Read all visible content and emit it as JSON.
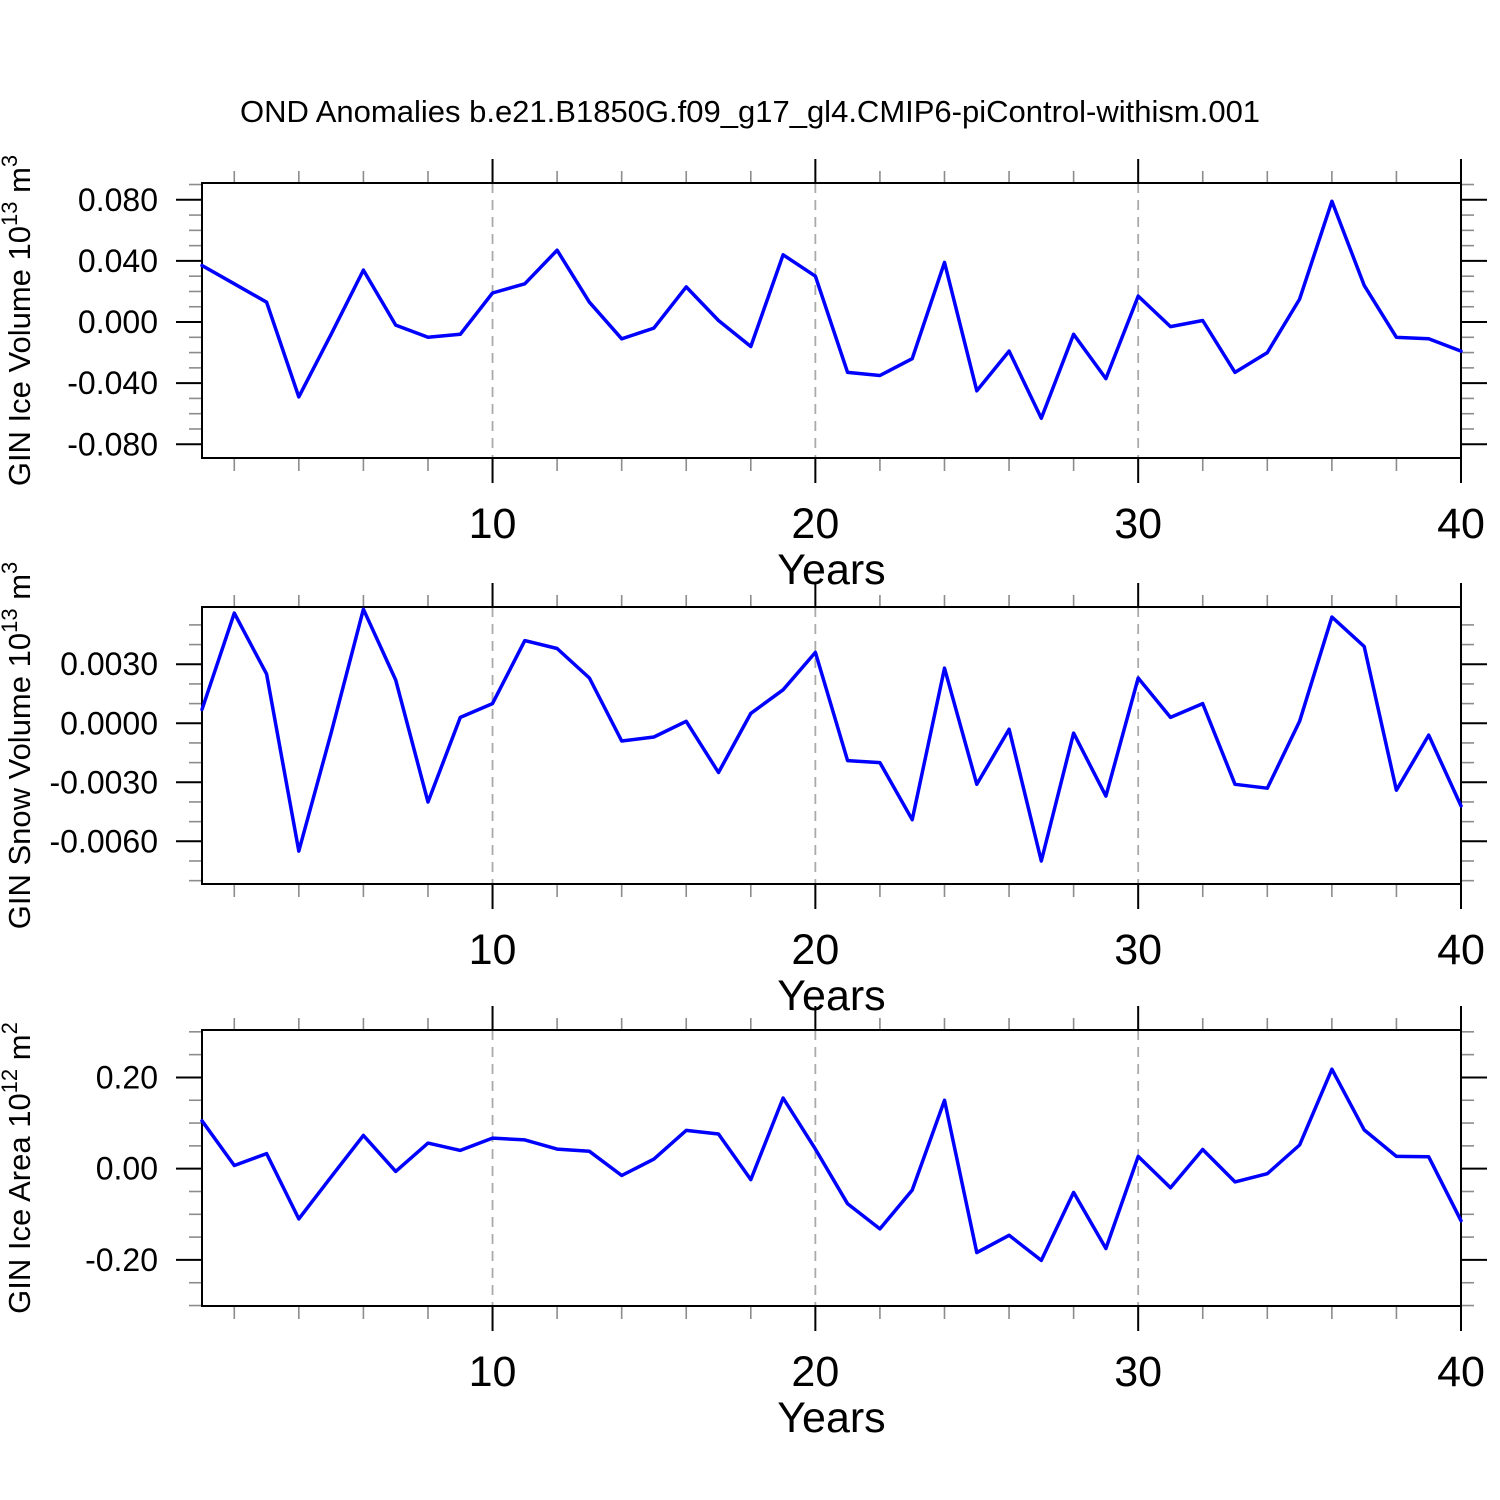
{
  "title": "OND Anomalies b.e21.B1850G.f09_g17_gl4.CMIP6-piControl-withism.001",
  "style": {
    "line_color": "#0000ff",
    "axis_color": "#000000",
    "minor_tick_color": "#8c8c8c",
    "grid_color": "#aaaaaa",
    "background": "#ffffff"
  },
  "chart_data": [
    {
      "type": "line",
      "name": "gin-ice-volume",
      "ylabel": "GIN Ice Volume 10^13 m^3",
      "ylabel_parts": [
        {
          "t": "GIN Ice Volume 10"
        },
        {
          "sup": "13"
        },
        {
          "t": " m"
        },
        {
          "sup": "3"
        }
      ],
      "xlabel": "Years",
      "x_start": 1,
      "xlim": [
        1,
        40
      ],
      "ylim": [
        -0.089,
        0.091
      ],
      "yticks": [
        -0.08,
        -0.04,
        0.0,
        0.04,
        0.08
      ],
      "ytick_labels": [
        "-0.080",
        "-0.040",
        "0.000",
        "0.040",
        "0.080"
      ],
      "yminor_step": 0.01,
      "xticks": [
        10,
        20,
        30,
        40
      ],
      "xtick_labels": [
        "10",
        "20",
        "30",
        "40"
      ],
      "xminor_step": 2,
      "grid_x": [
        10,
        20,
        30
      ],
      "values": [
        0.037,
        0.025,
        0.013,
        -0.049,
        -0.008,
        0.034,
        -0.002,
        -0.01,
        -0.008,
        0.019,
        0.025,
        0.047,
        0.013,
        -0.011,
        -0.004,
        0.023,
        0.001,
        -0.016,
        0.044,
        0.03,
        -0.033,
        -0.035,
        -0.024,
        0.039,
        -0.045,
        -0.019,
        -0.063,
        -0.008,
        -0.037,
        0.017,
        -0.003,
        0.001,
        -0.033,
        -0.02,
        0.015,
        0.079,
        0.024,
        -0.01,
        -0.011,
        -0.019
      ]
    },
    {
      "type": "line",
      "name": "gin-snow-volume",
      "ylabel": "GIN Snow Volume 10^13 m^3",
      "ylabel_parts": [
        {
          "t": "GIN Snow Volume 10"
        },
        {
          "sup": "13"
        },
        {
          "t": " m"
        },
        {
          "sup": "3"
        }
      ],
      "xlabel": "Years",
      "x_start": 1,
      "xlim": [
        1,
        40
      ],
      "ylim": [
        -0.00817,
        0.00591
      ],
      "yticks": [
        -0.006,
        -0.003,
        0.0,
        0.003
      ],
      "ytick_labels": [
        "-0.0060",
        "-0.0030",
        "0.0000",
        "0.0030"
      ],
      "yminor_step": 0.001,
      "xticks": [
        10,
        20,
        30,
        40
      ],
      "xtick_labels": [
        "10",
        "20",
        "30",
        "40"
      ],
      "xminor_step": 2,
      "grid_x": [
        10,
        20,
        30
      ],
      "values": [
        0.0007,
        0.0056,
        0.0025,
        -0.0065,
        -0.0005,
        0.0058,
        0.0022,
        -0.004,
        0.0003,
        0.001,
        0.0042,
        0.0038,
        0.0023,
        -0.0009,
        -0.0007,
        0.0001,
        -0.0025,
        0.0005,
        0.0017,
        0.0036,
        -0.0019,
        -0.002,
        -0.0049,
        0.0028,
        -0.0031,
        -0.0003,
        -0.007,
        -0.0005,
        -0.0037,
        0.0023,
        0.0003,
        0.001,
        -0.0031,
        -0.0033,
        0.0001,
        0.0054,
        0.0039,
        -0.0034,
        -0.0006,
        -0.0042
      ]
    },
    {
      "type": "line",
      "name": "gin-ice-area",
      "ylabel": "GIN Ice Area 10^12 m^2",
      "ylabel_parts": [
        {
          "t": "GIN Ice Area 10"
        },
        {
          "sup": "12"
        },
        {
          "t": " m"
        },
        {
          "sup": "2"
        }
      ],
      "xlabel": "Years",
      "x_start": 1,
      "xlim": [
        1,
        40
      ],
      "ylim": [
        -0.301,
        0.304
      ],
      "yticks": [
        -0.2,
        0.0,
        0.2
      ],
      "ytick_labels": [
        "-0.20",
        "0.00",
        "0.20"
      ],
      "yminor_step": 0.05,
      "xticks": [
        10,
        20,
        30,
        40
      ],
      "xtick_labels": [
        "10",
        "20",
        "30",
        "40"
      ],
      "xminor_step": 2,
      "grid_x": [
        10,
        20,
        30
      ],
      "values": [
        0.105,
        0.007,
        0.033,
        -0.11,
        -0.018,
        0.073,
        -0.006,
        0.056,
        0.04,
        0.067,
        0.063,
        0.043,
        0.038,
        -0.015,
        0.021,
        0.084,
        0.076,
        -0.024,
        0.155,
        0.043,
        -0.077,
        -0.132,
        -0.047,
        0.15,
        -0.184,
        -0.146,
        -0.201,
        -0.052,
        -0.175,
        0.027,
        -0.042,
        0.042,
        -0.029,
        -0.011,
        0.052,
        0.218,
        0.085,
        0.027,
        0.026,
        -0.114
      ]
    }
  ]
}
